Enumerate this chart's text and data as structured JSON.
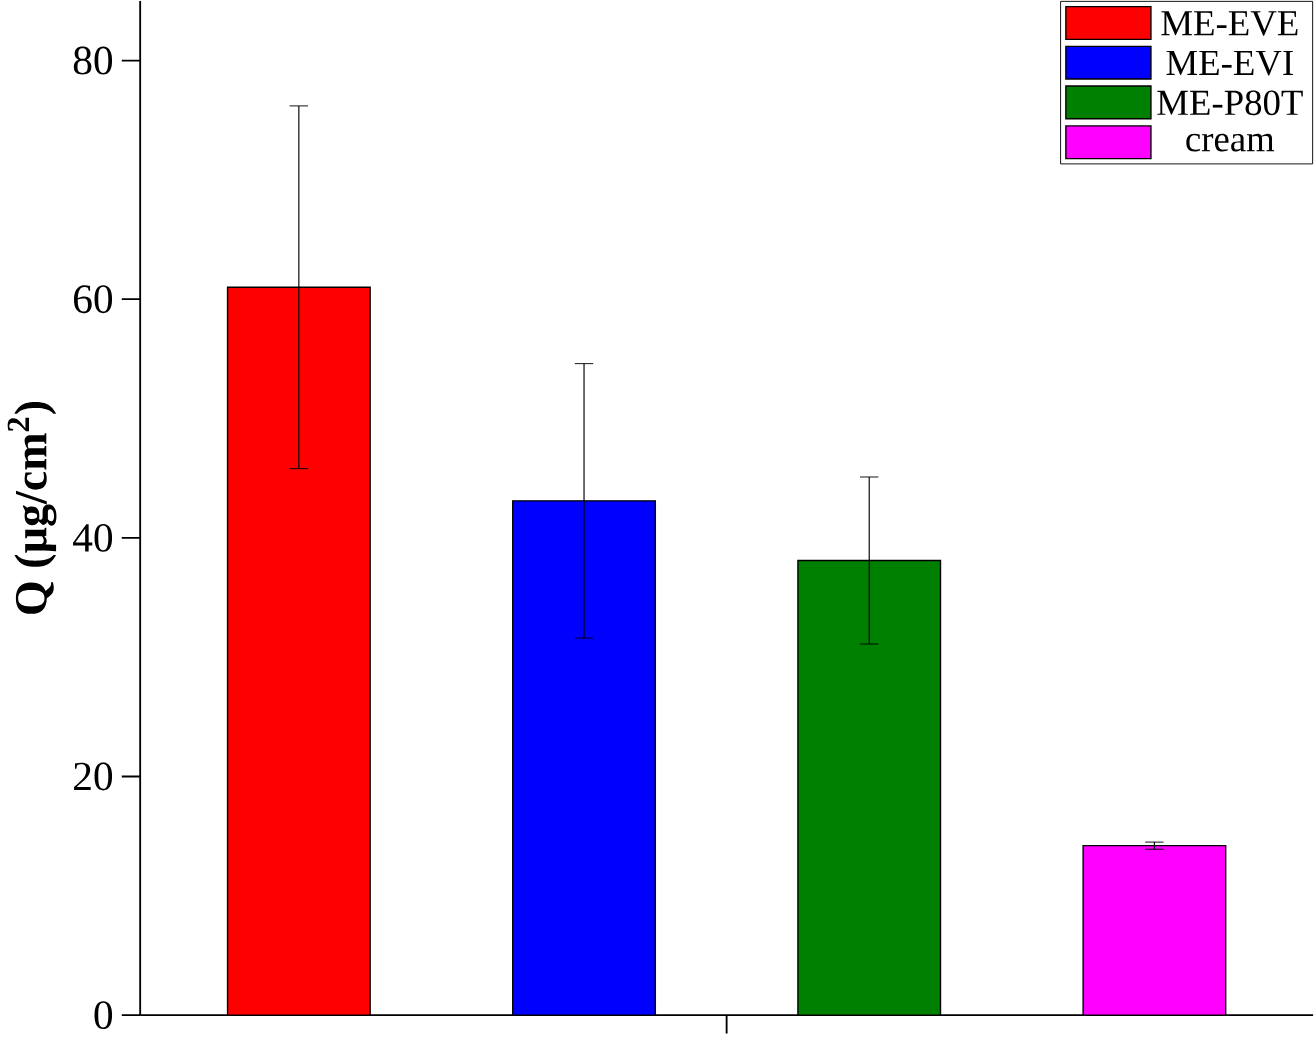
{
  "chart_data": {
    "type": "bar",
    "ylabel": "Q (µg/cm$^{2}$)",
    "categories": [
      null
    ],
    "series": [
      {
        "name": "ME-EVE",
        "color": "#ff0000",
        "values": [
          61.0
        ],
        "errors": [
          15.2
        ]
      },
      {
        "name": "ME-EVI",
        "color": "#0000ff",
        "values": [
          43.1
        ],
        "errors": [
          11.5
        ]
      },
      {
        "name": "ME-P80T",
        "color": "#008000",
        "values": [
          38.1
        ],
        "errors": [
          7.0
        ]
      },
      {
        "name": "cream",
        "color": "#ff00ff",
        "values": [
          14.2
        ],
        "errors": [
          0.3
        ]
      }
    ],
    "ylim": [
      0,
      85
    ],
    "yticks": [
      0,
      20,
      40,
      60,
      80
    ],
    "legend": "top right"
  }
}
